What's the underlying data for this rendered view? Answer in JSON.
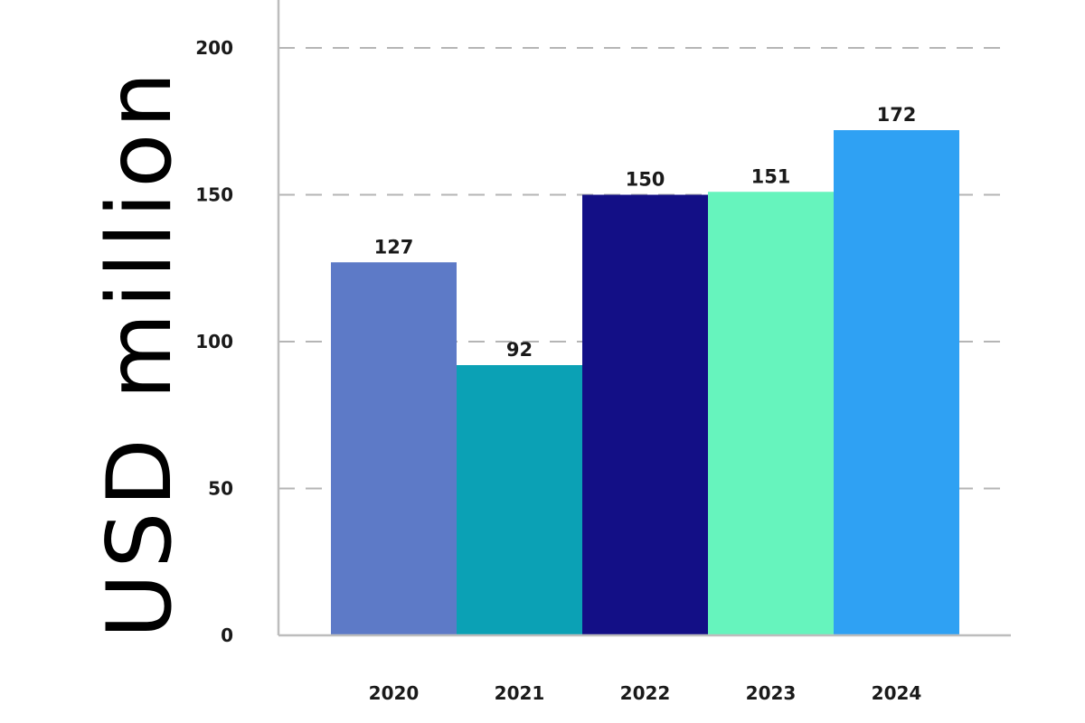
{
  "chart_data": {
    "type": "bar",
    "categories": [
      "2020",
      "2021",
      "2022",
      "2023",
      "2024"
    ],
    "values": [
      127,
      92,
      150,
      151,
      172
    ],
    "colors": [
      "#5d7ac7",
      "#0ba1b5",
      "#130f86",
      "#66f4bd",
      "#2fa1f3"
    ],
    "title": "",
    "xlabel": "",
    "ylabel": "USD million",
    "ylim": [
      0,
      200
    ],
    "yticks": [
      0,
      50,
      100,
      150,
      200
    ],
    "ytick_labels": [
      "0",
      "50",
      "100",
      "150",
      "200"
    ],
    "data_labels": [
      "127",
      "92",
      "150",
      "151",
      "172"
    ],
    "grid": "horizontal dashed",
    "legend": "none"
  }
}
